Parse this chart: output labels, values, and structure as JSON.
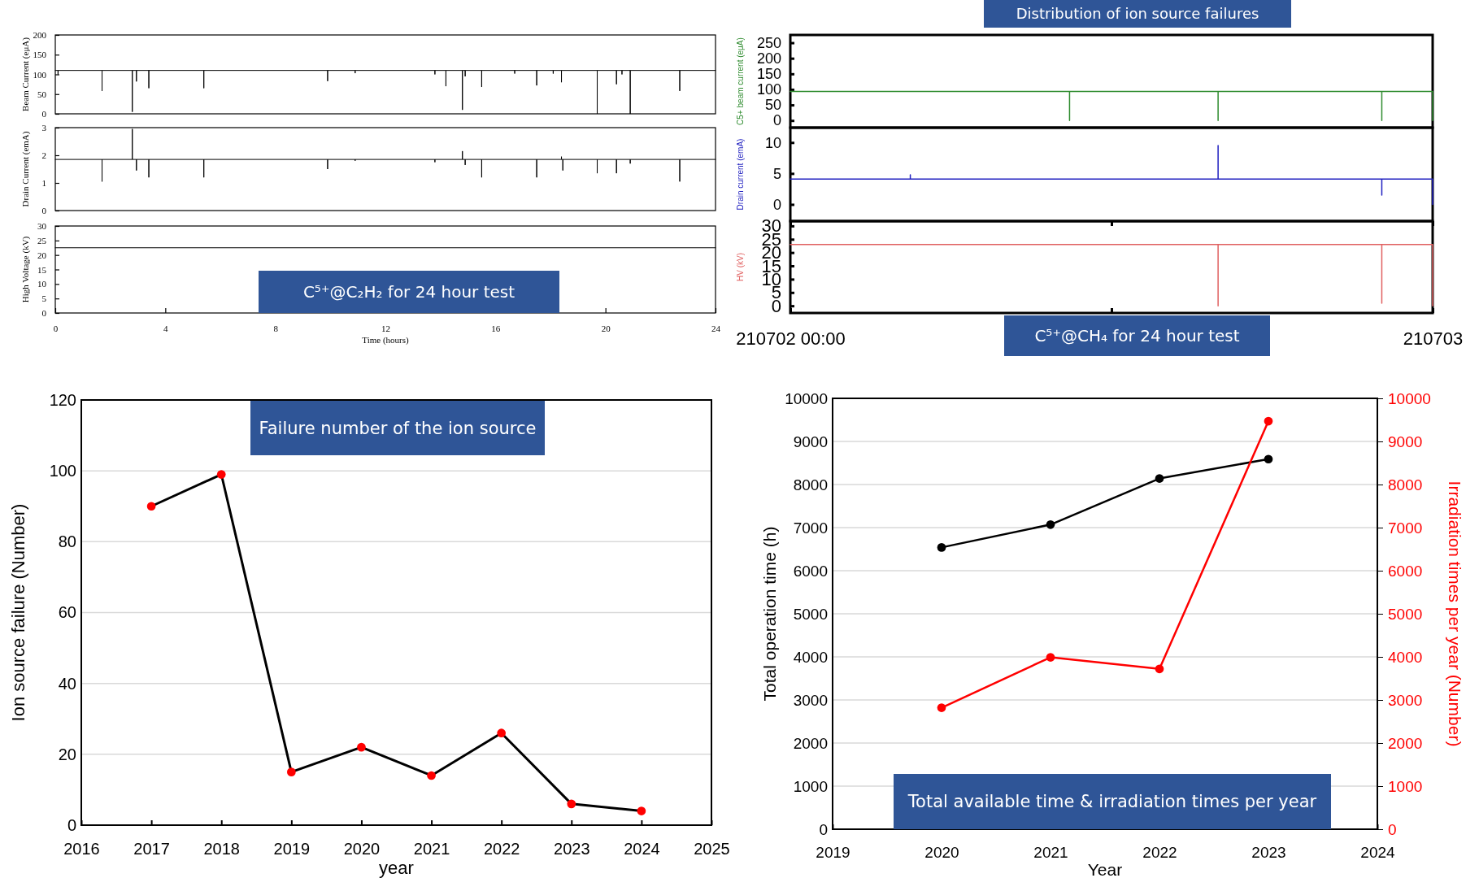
{
  "chart_data": [
    {
      "type": "line",
      "ylabel": "Beam Current (eμA)",
      "xlim": [
        0,
        24
      ],
      "ylim": [
        0,
        200
      ],
      "yticks": [
        0,
        50,
        100,
        150,
        200
      ],
      "tick_labels": "y",
      "x": [
        0,
        0.1,
        0.1,
        0.1,
        1.7,
        1.7,
        1.7,
        2.8,
        2.8,
        2.8,
        2.95,
        2.95,
        2.95,
        3.4,
        3.4,
        3.4,
        5.4,
        5.4,
        5.4,
        9.9,
        9.9,
        9.9,
        10.9,
        10.9,
        10.9,
        13.8,
        13.8,
        13.8,
        14.2,
        14.2,
        14.2,
        14.8,
        14.8,
        14.8,
        14.9,
        14.9,
        14.9,
        15.5,
        15.5,
        15.5,
        16.7,
        16.7,
        16.7,
        17.5,
        17.5,
        17.5,
        18.1,
        18.1,
        18.1,
        18.4,
        18.4,
        18.4,
        19.7,
        19.7,
        19.7,
        20.4,
        20.4,
        20.4,
        20.6,
        20.6,
        20.6,
        20.9,
        20.9,
        20.9,
        22.7,
        22.7,
        22.7,
        24
      ],
      "series": [
        {
          "color": "#000000",
          "values": [
            110,
            110,
            100,
            110,
            110,
            58,
            110,
            110,
            5,
            110,
            110,
            82,
            110,
            110,
            65,
            110,
            110,
            65,
            110,
            110,
            83,
            110,
            110,
            103,
            110,
            110,
            100,
            110,
            110,
            70,
            110,
            110,
            10,
            110,
            110,
            95,
            110,
            110,
            68,
            110,
            110,
            102,
            110,
            110,
            72,
            110,
            110,
            102,
            110,
            110,
            80,
            110,
            110,
            0,
            110,
            110,
            75,
            110,
            110,
            100,
            110,
            110,
            0,
            110,
            110,
            58,
            110,
            110
          ]
        }
      ]
    },
    {
      "type": "line",
      "ylabel": "Drain Current (emA)",
      "xlim": [
        0,
        24
      ],
      "ylim": [
        0,
        3
      ],
      "yticks": [
        0,
        1,
        2,
        3
      ],
      "tick_labels": "y",
      "x": [
        0,
        1.7,
        1.7,
        1.7,
        2.8,
        2.8,
        2.8,
        2.95,
        2.95,
        2.95,
        3.4,
        3.4,
        3.4,
        5.4,
        5.4,
        5.4,
        9.9,
        9.9,
        9.9,
        10.9,
        10.9,
        10.9,
        13.8,
        13.8,
        13.8,
        14.8,
        14.8,
        14.8,
        14.9,
        14.9,
        14.9,
        15.5,
        15.5,
        15.5,
        17.5,
        17.5,
        17.5,
        18.4,
        18.4,
        18.4,
        18.45,
        18.45,
        18.45,
        19.7,
        19.7,
        19.7,
        20.4,
        20.4,
        20.4,
        20.9,
        20.9,
        20.9,
        22.7,
        22.7,
        22.7,
        24
      ],
      "series": [
        {
          "color": "#000000",
          "values": [
            1.85,
            1.85,
            1.05,
            1.85,
            1.85,
            2.95,
            1.85,
            1.85,
            1.45,
            1.85,
            1.85,
            1.2,
            1.85,
            1.85,
            1.2,
            1.85,
            1.85,
            1.5,
            1.85,
            1.85,
            1.8,
            1.85,
            1.85,
            1.75,
            1.85,
            1.85,
            2.15,
            1.85,
            1.85,
            1.65,
            1.85,
            1.85,
            1.2,
            1.85,
            1.85,
            1.2,
            1.85,
            1.85,
            1.95,
            1.85,
            1.85,
            1.45,
            1.85,
            1.85,
            1.35,
            1.85,
            1.85,
            1.35,
            1.85,
            1.85,
            1.7,
            1.85,
            1.85,
            1.05,
            1.85,
            1.85
          ]
        }
      ]
    },
    {
      "type": "line",
      "xlabel": "Time (hours)",
      "ylabel": "High Voltage (kV)",
      "xlim": [
        0,
        24
      ],
      "xticks": [
        0,
        4,
        8,
        12,
        16,
        20,
        24
      ],
      "ylim": [
        0,
        30
      ],
      "yticks": [
        0,
        5,
        10,
        15,
        20,
        25,
        30
      ],
      "annotations": [
        "C⁵⁺@C₂H₂  for 24 hour test"
      ],
      "x": [
        0,
        24
      ],
      "series": [
        {
          "color": "#000000",
          "values": [
            22.5,
            22.5
          ]
        }
      ]
    },
    {
      "type": "line",
      "title": "Distribution of ion source failures",
      "ylabel": "C5+ beam current (eμA)",
      "xlim": [
        "2021-07-02T00:00",
        "2021-07-03T00:00"
      ],
      "ylim": [
        -23,
        275
      ],
      "yticks": [
        0,
        50,
        100,
        150,
        200,
        250
      ],
      "tick_labels": "y",
      "x": [
        "2021-07-02T00:00",
        "2021-07-02T10:26",
        "2021-07-02T10:26",
        "2021-07-02T10:26",
        "2021-07-02T15:59",
        "2021-07-02T15:59",
        "2021-07-02T15:59",
        "2021-07-02T22:06",
        "2021-07-02T22:06",
        "2021-07-02T22:06",
        "2021-07-03T00:00",
        "2021-07-03T00:00"
      ],
      "series": [
        {
          "color": "#2e8b2e",
          "values": [
            93,
            93,
            0,
            93,
            93,
            0,
            93,
            93,
            0,
            93,
            93,
            0
          ]
        }
      ]
    },
    {
      "type": "line",
      "ylabel": "Drain current (emA)",
      "xlim": [
        "2021-07-02T00:00",
        "2021-07-03T00:00"
      ],
      "ylim": [
        -2.7,
        12.4
      ],
      "yticks": [
        0,
        5,
        10
      ],
      "tick_labels": "y",
      "x": [
        "2021-07-02T00:00",
        "2021-07-02T04:29",
        "2021-07-02T04:29",
        "2021-07-02T04:29",
        "2021-07-02T15:59",
        "2021-07-02T15:59",
        "2021-07-02T15:59",
        "2021-07-02T22:06",
        "2021-07-02T22:06",
        "2021-07-02T22:06",
        "2021-07-03T00:00",
        "2021-07-03T00:00"
      ],
      "series": [
        {
          "color": "#2020c0",
          "values": [
            4.1,
            4.1,
            4.8,
            4.1,
            4.1,
            9.5,
            4.1,
            4.1,
            1.5,
            4.1,
            4.1,
            0
          ]
        }
      ]
    },
    {
      "type": "line",
      "ylabel": "HV (kV)",
      "xlim": [
        "2021-07-02T00:00",
        "2021-07-03T00:00"
      ],
      "xticks": [
        {
          "value": "2021-07-02T00:00",
          "label": "210702 00:00"
        },
        {
          "value": "2021-07-02T12:00",
          "label": null
        },
        {
          "value": "2021-07-03T00:00",
          "label": "210703"
        }
      ],
      "ylim": [
        -2.7,
        31.8
      ],
      "yticks": [
        0,
        5,
        10,
        15,
        20,
        25,
        30
      ],
      "annotations": [
        "C⁵⁺@CH₄  for 24 hour test"
      ],
      "x": [
        "2021-07-02T00:00",
        "2021-07-02T15:59",
        "2021-07-02T15:59",
        "2021-07-02T15:59",
        "2021-07-02T22:06",
        "2021-07-02T22:06",
        "2021-07-02T22:06",
        "2021-07-03T00:00",
        "2021-07-03T00:00"
      ],
      "series": [
        {
          "color": "#e06060",
          "values": [
            23,
            23,
            0,
            23,
            23,
            1,
            23,
            23,
            0
          ]
        }
      ]
    },
    {
      "type": "line",
      "title": "Failure number of the ion source",
      "xlabel": "year",
      "ylabel": "Ion source failure (Number)",
      "xlim": [
        2016,
        2025
      ],
      "xticks": [
        2016,
        2017,
        2018,
        2019,
        2020,
        2021,
        2022,
        2023,
        2024,
        2025
      ],
      "ylim": [
        0,
        120
      ],
      "yticks": [
        0,
        20,
        40,
        60,
        80,
        100,
        120
      ],
      "grid": "y",
      "marker": "circle",
      "line_style": "solid",
      "x": [
        2017,
        2018,
        2019,
        2020,
        2021,
        2022,
        2023,
        2024
      ],
      "series": [
        {
          "color": "#000000",
          "colors": [
            "#ff0000",
            "#ff0000",
            "#ff0000",
            "#ff0000",
            "#ff0000",
            "#ff0000",
            "#ff0000",
            "#ff0000"
          ],
          "values": [
            90,
            99,
            15,
            22,
            14,
            26,
            6,
            4
          ]
        }
      ]
    },
    {
      "type": "line",
      "title": "Total available time & irradiation times per year",
      "xlabel": "Year",
      "ylabel": "Total operation time (h)",
      "y2label": "Irradiation times per year (Number)",
      "xlim": [
        2019,
        2024
      ],
      "xticks": [
        2019,
        2020,
        2021,
        2022,
        2023,
        2024
      ],
      "ylim": [
        0,
        10000
      ],
      "yticks": [
        0,
        1000,
        2000,
        3000,
        4000,
        5000,
        6000,
        7000,
        8000,
        9000,
        10000
      ],
      "y2lim": [
        0,
        10000
      ],
      "y2ticks": [
        0,
        1000,
        2000,
        3000,
        4000,
        5000,
        6000,
        7000,
        8000,
        9000,
        10000
      ],
      "grid": "y",
      "marker": "circle",
      "line_style": "solid",
      "x": [
        2020,
        2021,
        2022,
        2023
      ],
      "series": [
        {
          "color": "#000000",
          "values": [
            6540,
            7070,
            8140,
            8590
          ]
        },
        {
          "color": "#ff0000",
          "axis": "y2",
          "values": [
            2820,
            3990,
            3720,
            9470
          ]
        }
      ]
    }
  ]
}
